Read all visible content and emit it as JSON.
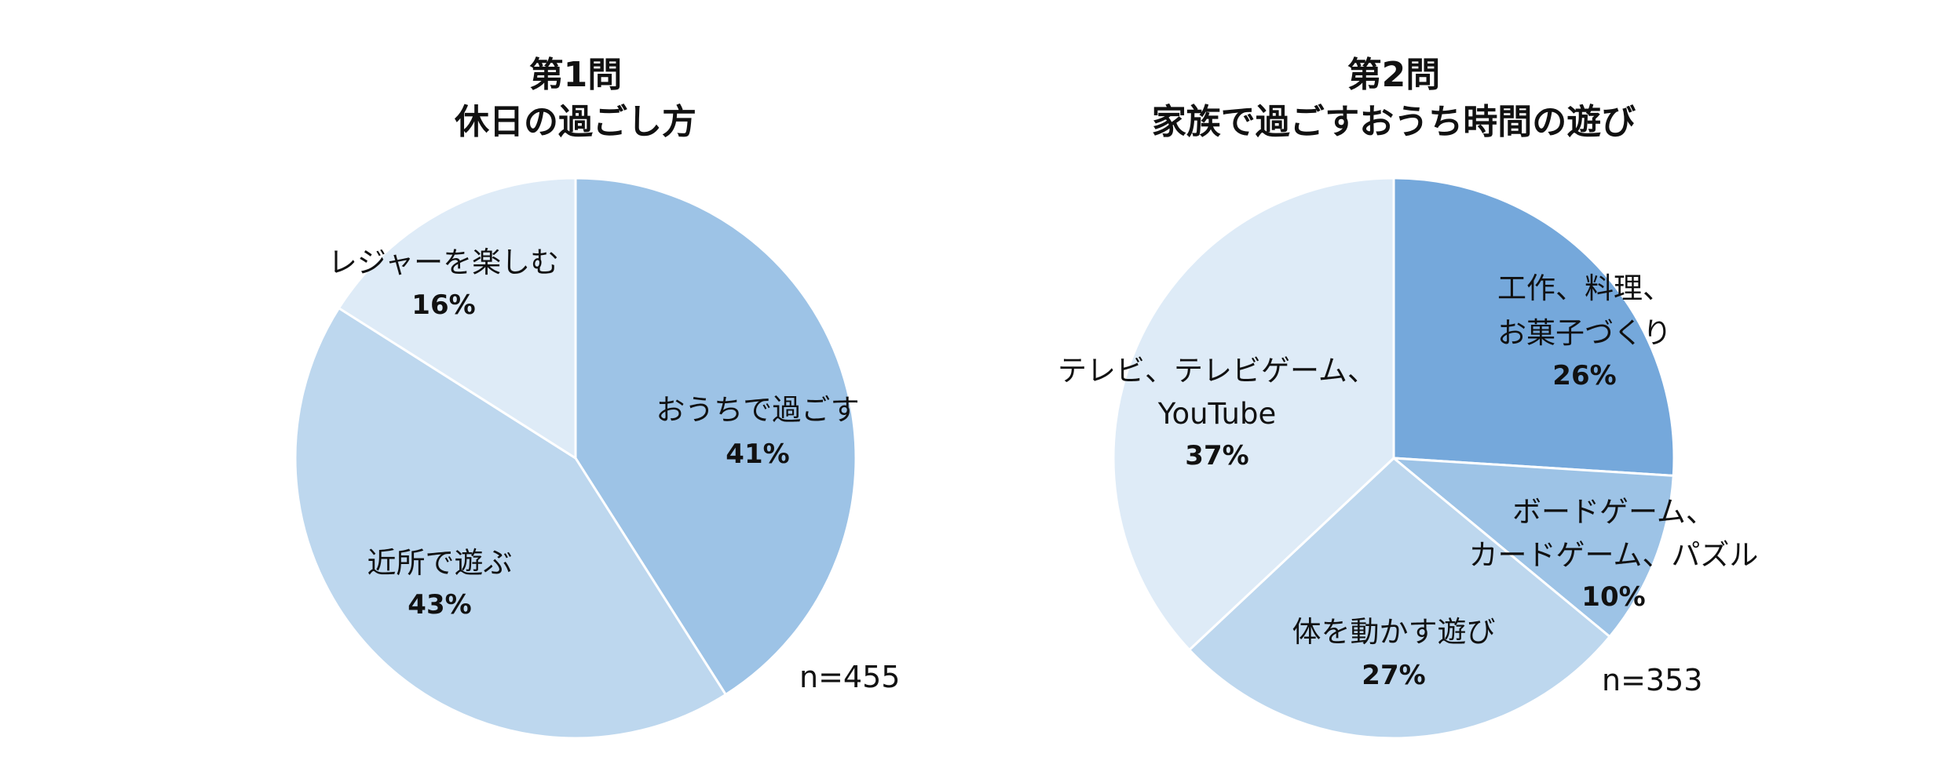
{
  "chart_data": [
    {
      "type": "pie",
      "title": [
        "第1問",
        "休日の過ごし方"
      ],
      "note": "n=455",
      "slices": [
        {
          "label": [
            "おうちで過ごす"
          ],
          "value": 41,
          "display": "41%",
          "color": "#9DC3E6"
        },
        {
          "label": [
            "近所で遊ぶ"
          ],
          "value": 43,
          "display": "43%",
          "color": "#BDD7EE"
        },
        {
          "label": [
            "レジャーを楽しむ"
          ],
          "value": 16,
          "display": "16%",
          "color": "#DEEBF7"
        }
      ]
    },
    {
      "type": "pie",
      "title": [
        "第2問",
        "家族で過ごすおうち時間の遊び"
      ],
      "note": "n=353",
      "slices": [
        {
          "label": [
            "工作、料理、",
            "お菓子づくり"
          ],
          "value": 26,
          "display": "26%",
          "color": "#75A8DB"
        },
        {
          "label": [
            "ボードゲーム、",
            "カードゲーム、パズル"
          ],
          "value": 10,
          "display": "10%",
          "color": "#9DC3E6"
        },
        {
          "label": [
            "体を動かす遊び"
          ],
          "value": 27,
          "display": "27%",
          "color": "#BDD7EE"
        },
        {
          "label": [
            "テレビ、テレビゲーム、",
            "YouTube"
          ],
          "value": 37,
          "display": "37%",
          "color": "#DEEBF7"
        }
      ]
    }
  ]
}
